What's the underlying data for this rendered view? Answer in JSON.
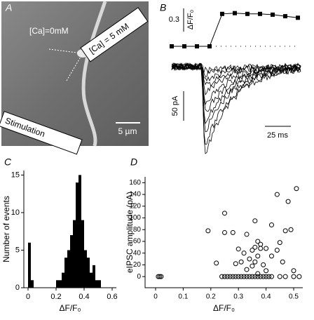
{
  "panel_a": {
    "label": "A",
    "ca_zero": "[Ca]=0mM",
    "ca_five": "[Ca] = 5 mM",
    "stimulation": "Stimulation",
    "scale": "5 µm"
  },
  "panel_b": {
    "current_scale": "50 pA",
    "time_scale": "25 ms"
  },
  "chart_data": [
    {
      "type": "line",
      "panel_label": "B",
      "color": "#000000",
      "values": [
        0,
        0,
        0,
        0,
        0.42,
        0.43,
        0.42,
        0.42,
        0.41,
        0.39,
        0.37
      ],
      "scale_bar": {
        "value": 0.3,
        "label": "ΔF/F₀"
      }
    },
    {
      "type": "histogram",
      "panel_label": "C",
      "color": "#000000",
      "xlabel": "ΔF/F₀",
      "ylabel": "Number of events",
      "bins": [
        0,
        0.02,
        0.04,
        0.06,
        0.08,
        0.1,
        0.12,
        0.14,
        0.16,
        0.18,
        0.2,
        0.22,
        0.24,
        0.26,
        0.28,
        0.3,
        0.32,
        0.34,
        0.36,
        0.38,
        0.4,
        0.42,
        0.44,
        0.46,
        0.48,
        0.5,
        0.52
      ],
      "values": [
        6,
        1,
        0,
        0,
        0,
        0,
        0,
        0,
        0,
        0,
        1,
        1,
        2,
        4,
        5,
        7,
        9,
        14,
        15,
        9,
        5,
        4,
        2,
        3,
        1,
        1
      ],
      "xlim": [
        -0.03,
        0.63
      ],
      "xticks": [
        0,
        0.2,
        0.4,
        0.6
      ],
      "ylim": [
        0,
        15.6
      ],
      "yticks": [
        0,
        5,
        10,
        15
      ]
    },
    {
      "type": "scatter",
      "panel_label": "D",
      "color": "#000000",
      "xlabel": "ΔF/F₀",
      "ylabel": "eIPSC amplitude (pA)",
      "x": [
        0.01,
        0.015,
        0.02,
        0.24,
        0.25,
        0.26,
        0.27,
        0.28,
        0.29,
        0.3,
        0.31,
        0.32,
        0.33,
        0.34,
        0.35,
        0.36,
        0.37,
        0.38,
        0.39,
        0.4,
        0.41,
        0.42,
        0.45,
        0.47,
        0.5,
        0.52,
        0.44,
        0.51,
        0.25,
        0.48,
        0.36,
        0.19,
        0.25,
        0.28,
        0.42,
        0.49,
        0.47,
        0.33,
        0.37,
        0.38,
        0.4,
        0.36,
        0.35,
        0.32,
        0.3,
        0.34,
        0.37,
        0.31,
        0.29,
        0.36,
        0.39,
        0.35,
        0.33,
        0.4,
        0.22,
        0.46,
        0.42,
        0.44,
        0.5,
        0.37,
        0.38,
        0.45
      ],
      "values": [
        0,
        0,
        0,
        0,
        0,
        0,
        0,
        0,
        0,
        0,
        0,
        0,
        0,
        0,
        0,
        0,
        0,
        0,
        0,
        0,
        0,
        0,
        0,
        0,
        0,
        0,
        140,
        150,
        108,
        128,
        95,
        78,
        75,
        75,
        88,
        80,
        78,
        72,
        60,
        55,
        48,
        50,
        45,
        40,
        47,
        30,
        35,
        25,
        22,
        25,
        20,
        18,
        12,
        10,
        23,
        25,
        35,
        45,
        10,
        5,
        48,
        58
      ],
      "xlim": [
        -0.038,
        0.533
      ],
      "xticks": [
        0,
        0.1,
        0.2,
        0.3,
        0.4,
        0.5
      ],
      "ylim": [
        -19,
        170
      ],
      "yticks": [
        0,
        20,
        40,
        60,
        80,
        100,
        120,
        140,
        160
      ]
    }
  ]
}
